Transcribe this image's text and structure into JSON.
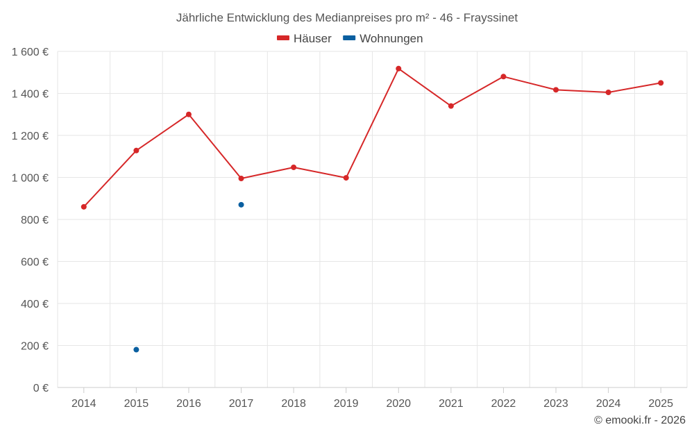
{
  "chart_data": {
    "type": "line",
    "title": "Jährliche Entwicklung des Medianpreises pro m² - 46 - Frayssinet",
    "categories": [
      "2014",
      "2015",
      "2016",
      "2017",
      "2018",
      "2019",
      "2020",
      "2021",
      "2022",
      "2023",
      "2024",
      "2025"
    ],
    "ylim": [
      0,
      1600
    ],
    "yticks": [
      0,
      200,
      400,
      600,
      800,
      1000,
      1200,
      1400,
      1600
    ],
    "ytick_labels": [
      "0 €",
      "200 €",
      "400 €",
      "600 €",
      "800 €",
      "1 000 €",
      "1 200 €",
      "1 400 €",
      "1 600 €"
    ],
    "grid": true,
    "legend_position": "top-center",
    "series": [
      {
        "name": "Häuser",
        "color": "#d62728",
        "values": [
          860,
          1128,
          1300,
          995,
          1048,
          998,
          1518,
          1340,
          1480,
          1417,
          1405,
          1450
        ]
      },
      {
        "name": "Wohnungen",
        "color": "#0a5fa0",
        "values": [
          null,
          180,
          null,
          870,
          null,
          null,
          null,
          null,
          null,
          null,
          null,
          null
        ]
      }
    ]
  },
  "credit": "© emooki.fr - 2026"
}
